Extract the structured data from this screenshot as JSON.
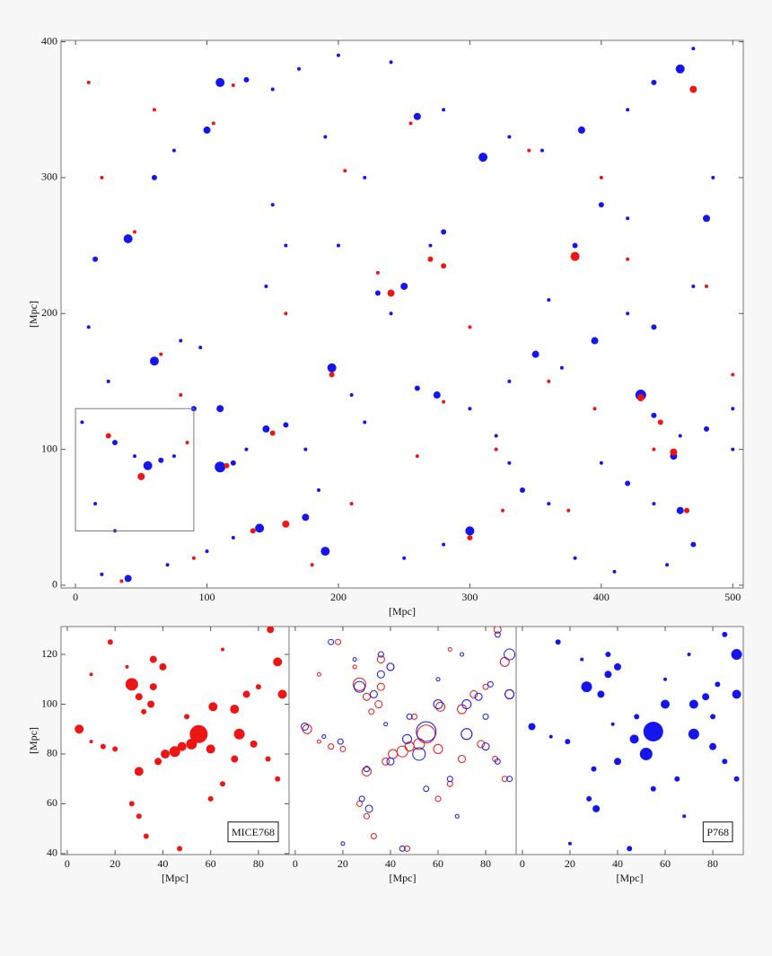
{
  "chart_data": [
    {
      "type": "scatter",
      "marker": "filled",
      "xlabel": "[Mpc]",
      "ylabel": "[Mpc]",
      "xlim": [
        -11,
        508
      ],
      "ylim": [
        -2,
        401
      ],
      "xticks": [
        0,
        100,
        200,
        300,
        400,
        500
      ],
      "yticks": [
        0,
        100,
        200,
        300,
        400
      ],
      "highlight": {
        "xlim": [
          0,
          90
        ],
        "ylim": [
          40,
          130
        ]
      },
      "series": [
        {
          "color": "#1515ee",
          "x": [
            30,
            45,
            55,
            65,
            75,
            110,
            120,
            130,
            145,
            160,
            175,
            185,
            175,
            140,
            120,
            100,
            70,
            40,
            20,
            190,
            60,
            80,
            90,
            110,
            40,
            60,
            75,
            100,
            110,
            130,
            150,
            170,
            200,
            240,
            280,
            260,
            220,
            200,
            230,
            240,
            250,
            270,
            280,
            195,
            210,
            220,
            260,
            275,
            300,
            320,
            330,
            340,
            300,
            280,
            250,
            310,
            330,
            355,
            385,
            420,
            440,
            460,
            470,
            400,
            420,
            380,
            360,
            350,
            330,
            370,
            395,
            420,
            440,
            470,
            480,
            485,
            430,
            440,
            460,
            480,
            455,
            440,
            460,
            470,
            450,
            420,
            400,
            360,
            380,
            500,
            500,
            410,
            15,
            10,
            25,
            5,
            15,
            30,
            95,
            145,
            150,
            190,
            160
          ],
          "y": [
            105,
            95,
            88,
            92,
            95,
            87,
            90,
            100,
            115,
            118,
            100,
            70,
            50,
            42,
            35,
            25,
            15,
            5,
            8,
            25,
            165,
            180,
            130,
            130,
            255,
            300,
            320,
            335,
            370,
            372,
            365,
            380,
            390,
            385,
            350,
            345,
            300,
            250,
            215,
            200,
            220,
            250,
            260,
            160,
            140,
            120,
            145,
            140,
            130,
            110,
            90,
            70,
            40,
            30,
            20,
            315,
            330,
            320,
            335,
            350,
            370,
            380,
            395,
            280,
            270,
            250,
            210,
            170,
            150,
            160,
            180,
            200,
            190,
            220,
            270,
            300,
            140,
            125,
            110,
            115,
            95,
            60,
            55,
            30,
            15,
            75,
            90,
            60,
            20,
            130,
            100,
            10,
            240,
            190,
            150,
            120,
            60,
            40,
            175,
            220,
            280,
            330,
            250
          ],
          "sizes": [
            3,
            2,
            5,
            3,
            2,
            6,
            3,
            2,
            4,
            3,
            2,
            2,
            4,
            5,
            2,
            2,
            2,
            4,
            2,
            5,
            5,
            2,
            3,
            4,
            5,
            3,
            2,
            4,
            5,
            3,
            2,
            2,
            2,
            2,
            2,
            4,
            2,
            2,
            3,
            2,
            4,
            2,
            3,
            5,
            2,
            2,
            3,
            4,
            2,
            2,
            2,
            3,
            5,
            2,
            2,
            5,
            2,
            2,
            4,
            2,
            3,
            5,
            2,
            3,
            2,
            3,
            2,
            4,
            2,
            2,
            4,
            2,
            3,
            2,
            4,
            2,
            6,
            3,
            2,
            3,
            4,
            2,
            4,
            3,
            2,
            3,
            2,
            2,
            2,
            2,
            2,
            2,
            3,
            2,
            2,
            2,
            2,
            2,
            2,
            2,
            2,
            2,
            2
          ]
        },
        {
          "color": "#ee1515",
          "x": [
            25,
            50,
            85,
            115,
            150,
            160,
            135,
            90,
            35,
            65,
            105,
            120,
            45,
            240,
            270,
            255,
            280,
            195,
            280,
            300,
            320,
            345,
            380,
            395,
            430,
            445,
            455,
            465,
            440,
            470,
            400,
            480,
            230,
            205,
            210,
            360,
            160,
            20,
            60,
            500,
            375,
            325,
            180,
            80,
            10,
            260,
            300,
            420
          ],
          "y": [
            110,
            80,
            105,
            88,
            112,
            45,
            40,
            20,
            3,
            170,
            340,
            368,
            260,
            215,
            240,
            340,
            235,
            155,
            135,
            35,
            100,
            320,
            242,
            130,
            138,
            120,
            98,
            55,
            100,
            365,
            300,
            220,
            230,
            305,
            60,
            150,
            200,
            300,
            350,
            155,
            55,
            55,
            15,
            140,
            370,
            95,
            190,
            240
          ],
          "sizes": [
            3,
            4,
            2,
            3,
            3,
            4,
            3,
            2,
            2,
            2,
            2,
            2,
            2,
            4,
            3,
            2,
            3,
            3,
            2,
            3,
            2,
            2,
            5,
            2,
            4,
            3,
            4,
            3,
            2,
            4,
            2,
            2,
            2,
            2,
            2,
            2,
            2,
            2,
            2,
            2,
            2,
            2,
            2,
            2,
            2,
            2,
            2,
            2
          ]
        }
      ]
    },
    {
      "type": "scatter",
      "marker": "filled",
      "label": "MICE768",
      "xlabel": "[Mpc]",
      "ylabel": "[Mpc]",
      "xlim": [
        -2.6,
        92.8
      ],
      "ylim": [
        39.6,
        131.2
      ],
      "xticks": [
        0,
        20,
        40,
        60,
        80
      ],
      "yticks": [
        40,
        60,
        80,
        100,
        120
      ],
      "series": [
        {
          "color": "#ee1515",
          "x": [
            5,
            27,
            30,
            35,
            36,
            32,
            55,
            52,
            48,
            45,
            41,
            38,
            60,
            61,
            72,
            70,
            75,
            80,
            88,
            90,
            78,
            84,
            30,
            27,
            30,
            33,
            20,
            15,
            10,
            40,
            36,
            18,
            10,
            85,
            65,
            70,
            60,
            47,
            65,
            50,
            25,
            88
          ],
          "y": [
            90,
            108,
            103,
            100,
            107,
            97,
            88,
            84,
            83,
            81,
            80,
            77,
            82,
            99,
            88,
            98,
            104,
            107,
            117,
            104,
            84,
            78,
            73,
            60,
            55,
            47,
            82,
            83,
            85,
            115,
            118,
            125,
            112,
            130,
            68,
            78,
            62,
            42,
            122,
            95,
            115,
            70
          ],
          "sizes": [
            5,
            7,
            4,
            4,
            4,
            3,
            10,
            6,
            5,
            6,
            5,
            4,
            5,
            5,
            6,
            5,
            4,
            3,
            5,
            5,
            4,
            3,
            5,
            3,
            3,
            3,
            3,
            3,
            2,
            4,
            4,
            3,
            2,
            4,
            3,
            4,
            3,
            3,
            2,
            3,
            2,
            3
          ]
        }
      ]
    },
    {
      "type": "scatter",
      "marker": "open",
      "xlabel": "[Mpc]",
      "xlim": [
        -2.6,
        92.8
      ],
      "ylim": [
        39.6,
        131.2
      ],
      "xticks": [
        0,
        20,
        40,
        60,
        80
      ]
    },
    {
      "type": "scatter",
      "marker": "filled",
      "label": "P768",
      "xlabel": "[Mpc]",
      "xlim": [
        -2.6,
        92.8
      ],
      "ylim": [
        39.6,
        131.2
      ],
      "xticks": [
        0,
        20,
        40,
        60,
        80
      ],
      "series": [
        {
          "color": "#1515ee",
          "x": [
            4,
            27,
            33,
            36,
            55,
            52,
            47,
            40,
            60,
            72,
            72,
            77,
            90,
            90,
            82,
            80,
            85,
            30,
            31,
            28,
            19,
            12,
            40,
            36,
            15,
            85,
            65,
            55,
            45,
            20,
            60,
            48,
            25,
            90,
            70,
            80,
            38,
            68
          ],
          "y": [
            91,
            107,
            104,
            112,
            89,
            80,
            86,
            77,
            100,
            88,
            100,
            103,
            120,
            104,
            108,
            83,
            77,
            74,
            58,
            62,
            85,
            87,
            115,
            120,
            125,
            128,
            70,
            66,
            42,
            44,
            110,
            95,
            118,
            70,
            120,
            95,
            92,
            55
          ],
          "sizes": [
            4,
            6,
            4,
            4,
            11,
            7,
            5,
            4,
            5,
            6,
            5,
            4,
            6,
            5,
            3,
            4,
            3,
            3,
            4,
            3,
            3,
            2,
            4,
            3,
            3,
            3,
            3,
            3,
            3,
            2,
            2,
            3,
            2,
            3,
            2,
            3,
            2,
            2
          ]
        }
      ]
    }
  ]
}
